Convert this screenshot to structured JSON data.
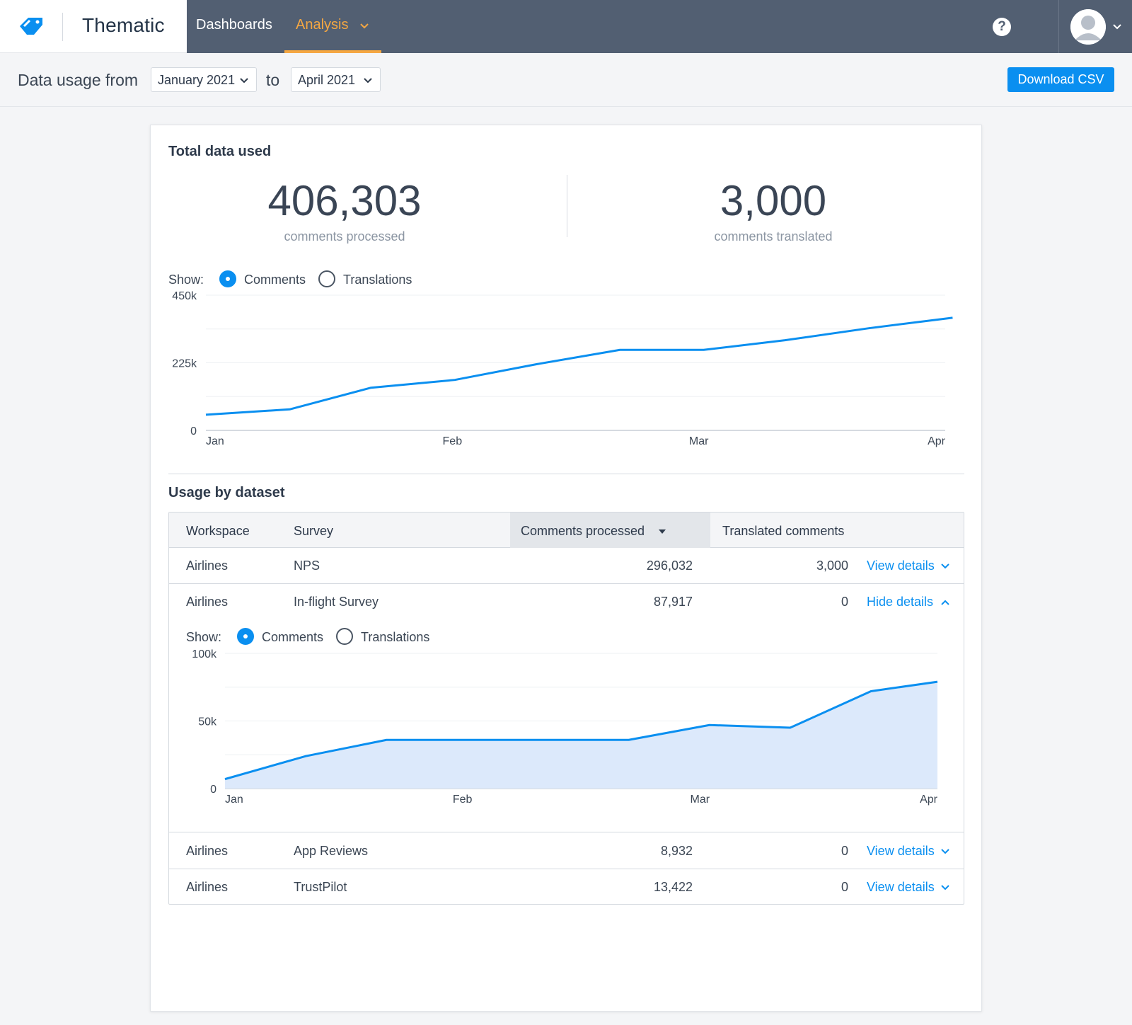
{
  "nav": {
    "brand": "Thematic",
    "dashboards": "Dashboards",
    "analysis": "Analysis",
    "help": "?"
  },
  "subbar": {
    "from_label": "Data usage from",
    "from_value": "January 2021",
    "to_label": "to",
    "to_value": "April 2021",
    "download": "Download CSV"
  },
  "totals": {
    "title": "Total data used",
    "processed_value": "406,303",
    "processed_caption": "comments processed",
    "translated_value": "3,000",
    "translated_caption": "comments translated"
  },
  "show": {
    "label": "Show:",
    "comments": "Comments",
    "translations": "Translations"
  },
  "colors": {
    "accent": "#0a8ff0",
    "nav_bg": "#525f72",
    "active_nav": "#f5a742",
    "area_fill": "#dce9fb"
  },
  "chart_data": [
    {
      "type": "line",
      "x_ticks": [
        "Jan",
        "Feb",
        "Mar",
        "Apr"
      ],
      "y_ticks": [
        "450k",
        "225k",
        "0"
      ],
      "ylim": [
        0,
        450000
      ],
      "x": [
        0,
        0.34,
        0.67,
        1.01,
        1.34,
        1.68,
        2.02,
        2.35,
        2.69,
        3.03
      ],
      "values": [
        52000,
        70000,
        142000,
        168000,
        220000,
        268000,
        268000,
        300000,
        340000,
        375000
      ],
      "grid": true,
      "area": false
    },
    {
      "type": "area",
      "x_ticks": [
        "Jan",
        "Feb",
        "Mar",
        "Apr"
      ],
      "y_ticks": [
        "100k",
        "50k",
        "0"
      ],
      "ylim": [
        0,
        100000
      ],
      "x": [
        0,
        0.34,
        0.68,
        1.02,
        1.36,
        1.7,
        2.04,
        2.38,
        2.72,
        3.0
      ],
      "values": [
        7000,
        24000,
        36000,
        36000,
        36000,
        36000,
        47000,
        45000,
        72000,
        79000
      ],
      "grid": true,
      "area": true
    }
  ],
  "usage": {
    "title": "Usage by dataset",
    "headers": {
      "workspace": "Workspace",
      "survey": "Survey",
      "processed": "Comments processed",
      "translated": "Translated comments"
    },
    "rows": [
      {
        "workspace": "Airlines",
        "survey": "NPS",
        "processed": "296,032",
        "translated": "3,000",
        "details": "View details"
      },
      {
        "workspace": "Airlines",
        "survey": "In-flight Survey",
        "processed": "87,917",
        "translated": "0",
        "details": "Hide details"
      },
      {
        "workspace": "Airlines",
        "survey": "App Reviews",
        "processed": "8,932",
        "translated": "0",
        "details": "View details"
      },
      {
        "workspace": "Airlines",
        "survey": "TrustPilot",
        "processed": "13,422",
        "translated": "0",
        "details": "View details"
      }
    ]
  }
}
